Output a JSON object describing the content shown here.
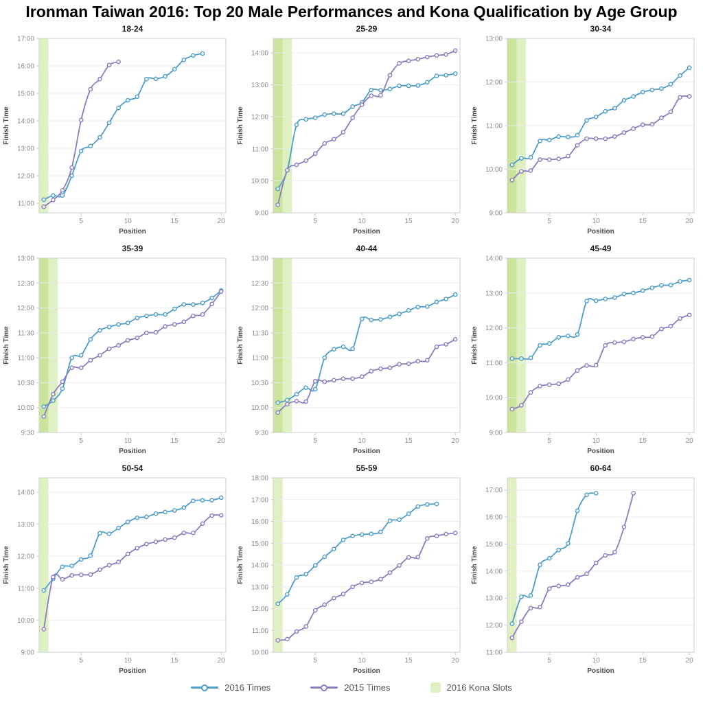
{
  "page_title": "Ironman Taiwan 2016: Top 20 Male Performances and Kona Qualification by Age Group",
  "legend": {
    "series_2016_label": "2016 Times",
    "series_2015_label": "2015 Times",
    "kona_label": "2016 Kona Slots"
  },
  "colors": {
    "series_2016": "#4D9DC9",
    "series_2015": "#897CBF",
    "kona_band_light": "#DFF0C2",
    "kona_band_dark": "#CBE49B",
    "grid": "#ECECEC",
    "axis": "#CFCFCF",
    "tick_text": "#8A8A8A",
    "axis_label_text": "#4A4A4A",
    "title_text": "#1A1A1A"
  },
  "chart_data": [
    {
      "type": "line",
      "title": "18-24",
      "xlabel": "Position",
      "ylabel": "Finish Time",
      "xlim": [
        0.5,
        20.5
      ],
      "xticks": [
        5,
        10,
        15,
        20
      ],
      "ylim": [
        10.65,
        17.0
      ],
      "ytick_step": 1,
      "kona_slots": 1,
      "series": [
        {
          "name": "2016 Times",
          "values": [
            11.13,
            11.28,
            11.28,
            12.0,
            12.9,
            13.08,
            13.4,
            13.93,
            14.47,
            14.75,
            14.88,
            15.52,
            15.53,
            15.62,
            15.88,
            16.22,
            16.38,
            16.45
          ]
        },
        {
          "name": "2015 Times",
          "values": [
            10.87,
            11.12,
            11.47,
            12.3,
            14.03,
            15.15,
            15.52,
            16.03,
            16.15
          ]
        }
      ]
    },
    {
      "type": "line",
      "title": "25-29",
      "xlabel": "Position",
      "ylabel": "Finish Time",
      "xlim": [
        0.5,
        20.5
      ],
      "xticks": [
        5,
        10,
        15,
        20
      ],
      "ylim": [
        9.0,
        14.45
      ],
      "ytick_step": 1,
      "kona_slots": 2,
      "series": [
        {
          "name": "2016 Times",
          "values": [
            9.75,
            10.33,
            11.75,
            11.92,
            11.97,
            12.07,
            12.1,
            12.1,
            12.32,
            12.45,
            12.84,
            12.83,
            12.87,
            12.97,
            12.97,
            12.98,
            13.08,
            13.28,
            13.3,
            13.35
          ]
        },
        {
          "name": "2015 Times",
          "values": [
            9.25,
            10.33,
            10.5,
            10.63,
            10.85,
            11.17,
            11.3,
            11.52,
            11.97,
            12.38,
            12.66,
            12.67,
            13.3,
            13.67,
            13.75,
            13.8,
            13.87,
            13.92,
            13.95,
            14.07
          ]
        }
      ]
    },
    {
      "type": "line",
      "title": "30-34",
      "xlabel": "Position",
      "ylabel": "Finish Time",
      "xlim": [
        0.5,
        20.5
      ],
      "xticks": [
        5,
        10,
        15,
        20
      ],
      "ylim": [
        9.0,
        13.0
      ],
      "ytick_step": 1,
      "kona_slots": 2,
      "series": [
        {
          "name": "2016 Times",
          "values": [
            10.1,
            10.25,
            10.27,
            10.65,
            10.67,
            10.75,
            10.74,
            10.78,
            11.12,
            11.2,
            11.33,
            11.4,
            11.58,
            11.67,
            11.77,
            11.82,
            11.85,
            11.95,
            12.15,
            12.33
          ]
        },
        {
          "name": "2015 Times",
          "values": [
            9.75,
            9.95,
            9.97,
            10.22,
            10.22,
            10.24,
            10.3,
            10.55,
            10.7,
            10.7,
            10.7,
            10.75,
            10.84,
            10.93,
            11.02,
            11.03,
            11.18,
            11.32,
            11.65,
            11.67
          ]
        }
      ]
    },
    {
      "type": "line",
      "title": "35-39",
      "xlabel": "Position",
      "ylabel": "Finish Time",
      "xlim": [
        0.5,
        20.5
      ],
      "xticks": [
        5,
        10,
        15,
        20
      ],
      "ylim": [
        9.5,
        13.0
      ],
      "ytick_step": 0.5,
      "kona_slots": 2,
      "series": [
        {
          "name": "2016 Times",
          "values": [
            10.02,
            10.14,
            10.38,
            11.0,
            11.05,
            11.37,
            11.55,
            11.62,
            11.67,
            11.7,
            11.8,
            11.84,
            11.87,
            11.87,
            11.98,
            12.07,
            12.07,
            12.1,
            12.2,
            12.35
          ]
        },
        {
          "name": "2015 Times",
          "values": [
            9.82,
            10.27,
            10.52,
            10.8,
            10.8,
            10.95,
            11.05,
            11.18,
            11.25,
            11.35,
            11.4,
            11.5,
            11.51,
            11.63,
            11.67,
            11.72,
            11.84,
            11.87,
            12.08,
            12.33
          ]
        }
      ]
    },
    {
      "type": "line",
      "title": "40-44",
      "xlabel": "Position",
      "ylabel": "Finish Time",
      "xlim": [
        0.5,
        20.5
      ],
      "xticks": [
        5,
        10,
        15,
        20
      ],
      "ylim": [
        9.5,
        13.0
      ],
      "ytick_step": 0.5,
      "kona_slots": 2,
      "series": [
        {
          "name": "2016 Times",
          "values": [
            10.1,
            10.15,
            10.27,
            10.4,
            10.37,
            11.0,
            11.17,
            11.22,
            11.18,
            11.78,
            11.76,
            11.77,
            11.82,
            11.88,
            11.95,
            12.02,
            12.03,
            12.12,
            12.18,
            12.27
          ]
        },
        {
          "name": "2015 Times",
          "values": [
            9.9,
            10.07,
            10.13,
            10.12,
            10.53,
            10.52,
            10.55,
            10.58,
            10.58,
            10.62,
            10.73,
            10.78,
            10.8,
            10.87,
            10.88,
            10.93,
            10.95,
            11.22,
            11.27,
            11.37
          ]
        }
      ]
    },
    {
      "type": "line",
      "title": "45-49",
      "xlabel": "Position",
      "ylabel": "Finish Time",
      "xlim": [
        0.5,
        20.5
      ],
      "xticks": [
        5,
        10,
        15,
        20
      ],
      "ylim": [
        9.0,
        14.0
      ],
      "ytick_step": 1,
      "kona_slots": 2,
      "series": [
        {
          "name": "2016 Times",
          "values": [
            11.12,
            11.12,
            11.14,
            11.5,
            11.55,
            11.73,
            11.77,
            11.81,
            12.77,
            12.78,
            12.83,
            12.87,
            12.97,
            13.0,
            13.07,
            13.15,
            13.22,
            13.23,
            13.33,
            13.37
          ]
        },
        {
          "name": "2015 Times",
          "values": [
            9.67,
            9.78,
            10.15,
            10.33,
            10.37,
            10.4,
            10.52,
            10.78,
            10.92,
            10.93,
            11.5,
            11.58,
            11.6,
            11.68,
            11.73,
            11.75,
            11.97,
            12.05,
            12.27,
            12.37
          ]
        }
      ]
    },
    {
      "type": "line",
      "title": "50-54",
      "xlabel": "Position",
      "ylabel": "Finish Time",
      "xlim": [
        0.5,
        20.5
      ],
      "xticks": [
        5,
        10,
        15,
        20
      ],
      "ylim": [
        9.0,
        14.45
      ],
      "ytick_step": 1,
      "kona_slots": 1,
      "series": [
        {
          "name": "2016 Times",
          "values": [
            10.93,
            11.3,
            11.67,
            11.7,
            11.9,
            12.02,
            12.72,
            12.7,
            12.88,
            13.07,
            13.2,
            13.23,
            13.33,
            13.38,
            13.43,
            13.52,
            13.73,
            13.75,
            13.75,
            13.83
          ]
        },
        {
          "name": "2015 Times",
          "values": [
            9.72,
            11.35,
            11.28,
            11.4,
            11.42,
            11.43,
            11.58,
            11.72,
            11.82,
            12.07,
            12.25,
            12.38,
            12.45,
            12.52,
            12.58,
            12.73,
            12.73,
            13.02,
            13.27,
            13.28
          ]
        }
      ]
    },
    {
      "type": "line",
      "title": "55-59",
      "xlabel": "Position",
      "ylabel": "Finish Time",
      "xlim": [
        0.5,
        20.5
      ],
      "xticks": [
        5,
        10,
        15,
        20
      ],
      "ylim": [
        10.0,
        18.0
      ],
      "ytick_step": 1,
      "kona_slots": 1,
      "series": [
        {
          "name": "2016 Times",
          "values": [
            12.22,
            12.65,
            13.43,
            13.58,
            13.98,
            14.38,
            14.73,
            15.15,
            15.33,
            15.4,
            15.43,
            15.52,
            16.03,
            16.08,
            16.35,
            16.68,
            16.78,
            16.8
          ]
        },
        {
          "name": "2015 Times",
          "values": [
            10.55,
            10.6,
            10.95,
            11.18,
            11.92,
            12.18,
            12.48,
            12.67,
            13.0,
            13.18,
            13.23,
            13.35,
            13.65,
            13.98,
            14.35,
            14.37,
            15.22,
            15.33,
            15.42,
            15.47
          ]
        }
      ]
    },
    {
      "type": "line",
      "title": "60-64",
      "xlabel": "Position",
      "ylabel": "Finish Time",
      "xlim": [
        0.5,
        20.5
      ],
      "xticks": [
        5,
        10,
        15,
        20
      ],
      "ylim": [
        11.0,
        17.45
      ],
      "ytick_step": 1,
      "kona_slots": 1,
      "series": [
        {
          "name": "2016 Times",
          "values": [
            12.05,
            13.05,
            13.1,
            14.23,
            14.47,
            14.78,
            15.02,
            16.23,
            16.82,
            16.88
          ]
        },
        {
          "name": "2015 Times",
          "values": [
            11.53,
            12.13,
            12.63,
            12.67,
            13.35,
            13.45,
            13.5,
            13.77,
            13.9,
            14.3,
            14.58,
            14.7,
            15.63,
            16.88
          ]
        }
      ]
    }
  ]
}
